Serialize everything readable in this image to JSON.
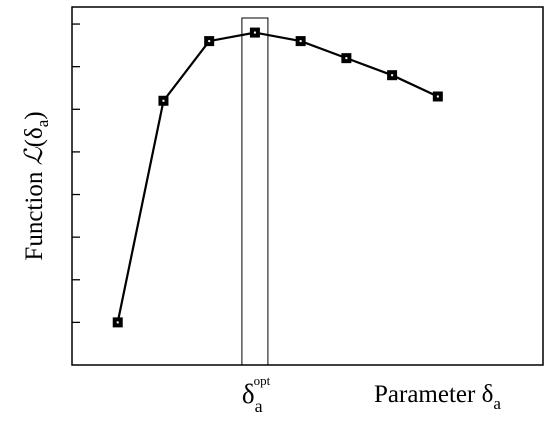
{
  "chart_data": {
    "type": "line",
    "ylabel": "Function ℒ(δa)",
    "xlabel": "Parameter δa",
    "x": [
      1,
      2,
      3,
      4,
      5,
      6,
      7,
      8
    ],
    "series": [
      {
        "values": [
          0.2,
          0.72,
          0.86,
          0.88,
          0.86,
          0.82,
          0.78,
          0.73
        ]
      }
    ],
    "highlight": {
      "x": 4,
      "label": "δa opt"
    },
    "xlim": [
      0,
      10.3
    ],
    "ylim": [
      0.1,
      0.94
    ],
    "y_ticks": [
      0.2,
      0.3,
      0.4,
      0.5,
      0.6,
      0.7,
      0.8,
      0.9
    ],
    "grid": false,
    "legend": "none",
    "line_color": "#000000",
    "marker": "square"
  }
}
